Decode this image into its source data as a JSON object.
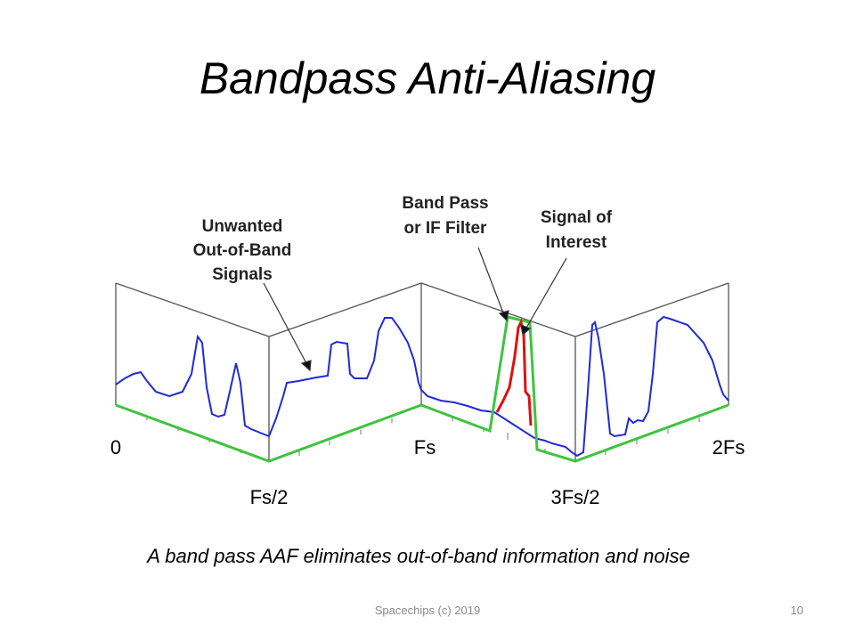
{
  "slide": {
    "title": "Bandpass Anti-Aliasing",
    "caption": "A band pass AAF eliminates out-of-band information and noise",
    "footer": "Spacechips (c) 2019",
    "page_number": "10"
  },
  "diagram": {
    "labels": {
      "unwanted_line1": "Unwanted",
      "unwanted_line2": "Out-of-Band",
      "unwanted_line3": "Signals",
      "bandpass_line1": "Band Pass",
      "bandpass_line2": "or IF Filter",
      "signal_line1": "Signal of",
      "signal_line2": "Interest"
    },
    "axis": {
      "zero": "0",
      "fs_half": "Fs/2",
      "fs": "Fs",
      "three_fs_half": "3Fs/2",
      "two_fs": "2Fs"
    },
    "colors": {
      "spectrum": "#1f2bd6",
      "filter": "#3ec43e",
      "signal": "#e01010",
      "frame": "#555555"
    }
  }
}
